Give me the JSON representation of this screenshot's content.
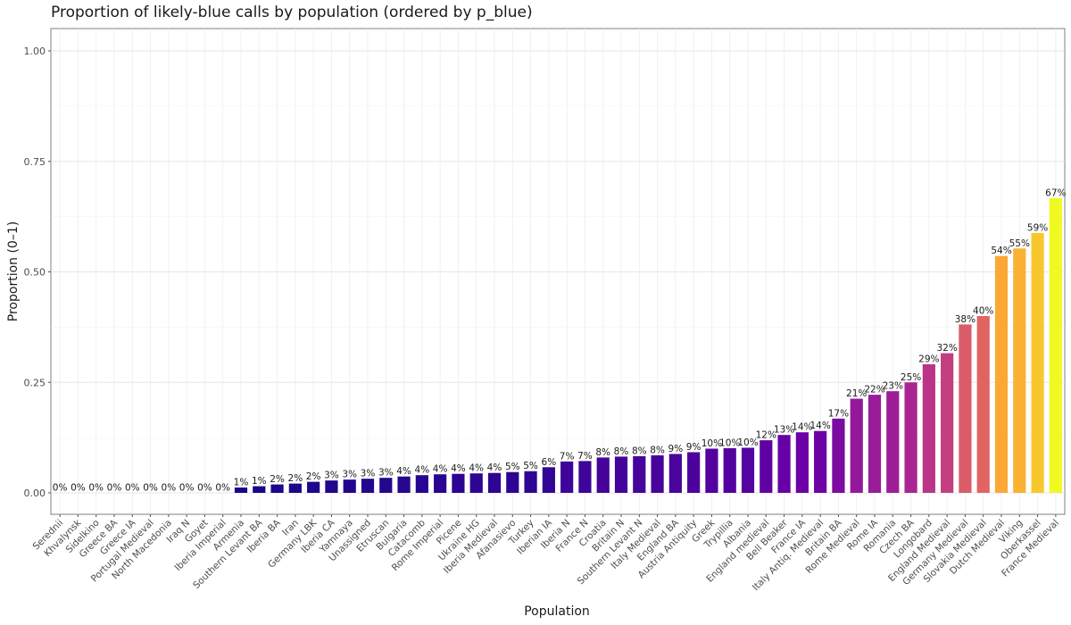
{
  "chart_data": {
    "type": "bar",
    "title": "Proportion of likely-blue calls by population (ordered by p_blue)",
    "xlabel": "Population",
    "ylabel": "Proportion (0–1)",
    "ylim": [
      0,
      1.0
    ],
    "yticks": [
      0.0,
      0.25,
      0.5,
      0.75,
      1.0
    ],
    "ytick_labels": [
      "0.00",
      "0.25",
      "0.50",
      "0.75",
      "1.00"
    ],
    "grid": true,
    "legend": "none",
    "categories": [
      "Serednii",
      "Khvalynsk",
      "Sidelkino",
      "Greece BA",
      "Greece IA",
      "Portugal Medieval",
      "North Macedonia",
      "Iraq N",
      "Goyet",
      "Iberia Imperial",
      "Armenia",
      "Southern Levant BA",
      "Iberia BA",
      "Iran",
      "Germany LBK",
      "Iberia CA",
      "Yamnaya",
      "Unassigned",
      "Etruscan",
      "Bulgaria",
      "Catacomb",
      "Rome Imperial",
      "Picene",
      "Ukraine HG",
      "Iberia Medieval",
      "Afanasievo",
      "Turkey",
      "Iberian IA",
      "Iberia N",
      "France N",
      "Croatia",
      "Britain N",
      "Southern Levant N",
      "Italy Medieval",
      "England BA",
      "Austria Antiquity",
      "Greek",
      "Trypillia",
      "Albania",
      "England medieval",
      "Bell Beaker",
      "France IA",
      "Italy Antiq. Medieval",
      "Britain BA",
      "Rome Medieval",
      "Rome IA",
      "Romania",
      "Czech BA",
      "Longobard",
      "England Medieval",
      "Germany Medieval",
      "Slovakia Medieval",
      "Dutch Medieval",
      "Viking",
      "Oberkassel",
      "France Medieval"
    ],
    "values": [
      0,
      0,
      0,
      0,
      0,
      0,
      0,
      0,
      0,
      0,
      0.012,
      0.015,
      0.019,
      0.021,
      0.025,
      0.028,
      0.03,
      0.032,
      0.034,
      0.037,
      0.04,
      0.042,
      0.043,
      0.044,
      0.045,
      0.047,
      0.049,
      0.058,
      0.071,
      0.072,
      0.08,
      0.082,
      0.083,
      0.085,
      0.088,
      0.092,
      0.1,
      0.101,
      0.102,
      0.119,
      0.131,
      0.137,
      0.14,
      0.168,
      0.213,
      0.222,
      0.23,
      0.25,
      0.291,
      0.316,
      0.381,
      0.4,
      0.536,
      0.553,
      0.588,
      0.667
    ],
    "data_labels": [
      "0%",
      "0%",
      "0%",
      "0%",
      "0%",
      "0%",
      "0%",
      "0%",
      "0%",
      "0%",
      "1%",
      "1%",
      "2%",
      "2%",
      "2%",
      "3%",
      "3%",
      "3%",
      "3%",
      "4%",
      "4%",
      "4%",
      "4%",
      "4%",
      "4%",
      "5%",
      "5%",
      "6%",
      "7%",
      "7%",
      "8%",
      "8%",
      "8%",
      "8%",
      "9%",
      "9%",
      "10%",
      "10%",
      "10%",
      "12%",
      "13%",
      "14%",
      "14%",
      "17%",
      "21%",
      "22%",
      "23%",
      "25%",
      "29%",
      "32%",
      "38%",
      "40%",
      "54%",
      "55%",
      "59%",
      "67%"
    ],
    "palette": [
      "#0d0887",
      "#6a00a8",
      "#b12a90",
      "#e16462",
      "#fca636",
      "#f0f921"
    ]
  }
}
